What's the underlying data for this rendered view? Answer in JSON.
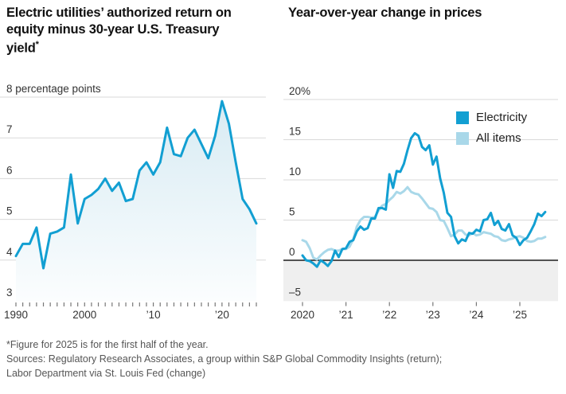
{
  "colors": {
    "accent": "#129fd2",
    "light_series": "#a9d8e9",
    "grid": "#d9d9d9",
    "zero_line": "#1a1a1a",
    "negative_band": "#efefef",
    "tick": "#777777",
    "axis_text": "#333333",
    "area_top": "#d7ebf3",
    "area_bottom": "#fbfdfe"
  },
  "chart_data": [
    {
      "type": "area",
      "title": "Electric utilities’ authorized return on equity minus 30-year U.S. Treasury yield",
      "title_marker": "*",
      "ylabel_unit": "percentage points",
      "ylim": [
        3,
        8
      ],
      "grid": true,
      "legend_position": "none",
      "line_color": "#129fd2",
      "x": [
        1990,
        1991,
        1992,
        1993,
        1994,
        1995,
        1996,
        1997,
        1998,
        1999,
        2000,
        2001,
        2002,
        2003,
        2004,
        2005,
        2006,
        2007,
        2008,
        2009,
        2010,
        2011,
        2012,
        2013,
        2014,
        2015,
        2016,
        2017,
        2018,
        2019,
        2020,
        2021,
        2022,
        2023,
        2024,
        2025
      ],
      "values": [
        4.1,
        4.4,
        4.4,
        4.8,
        3.8,
        4.65,
        4.7,
        4.8,
        6.1,
        4.9,
        5.5,
        5.6,
        5.75,
        6.0,
        5.7,
        5.9,
        5.45,
        5.5,
        6.2,
        6.4,
        6.1,
        6.4,
        7.25,
        6.6,
        6.55,
        7.0,
        7.2,
        6.85,
        6.5,
        7.05,
        7.9,
        7.35,
        6.4,
        5.5,
        5.25,
        4.9
      ],
      "yticks": [
        {
          "v": 8,
          "label": "8 percentage points",
          "gridline": true
        },
        {
          "v": 7,
          "label": "7",
          "gridline": true
        },
        {
          "v": 6,
          "label": "6",
          "gridline": true
        },
        {
          "v": 5,
          "label": "5",
          "gridline": true
        },
        {
          "v": 4,
          "label": "4",
          "gridline": true
        },
        {
          "v": 3,
          "label": "3",
          "gridline": false
        }
      ],
      "x_labels": [
        {
          "year": 1990,
          "label": "1990"
        },
        {
          "year": 2000,
          "label": "2000"
        },
        {
          "year": 2010,
          "label": "’10"
        },
        {
          "year": 2020,
          "label": "’20"
        }
      ]
    },
    {
      "type": "line",
      "title": "Year-over-year change in prices",
      "x_start_year": 2020,
      "x_interval": "monthly",
      "ylim": [
        -5,
        20
      ],
      "grid": true,
      "negative_band": true,
      "legend_position": "top-right",
      "yticks": [
        {
          "v": 20,
          "label": "20%",
          "gridline": true
        },
        {
          "v": 15,
          "label": "15",
          "gridline": true
        },
        {
          "v": 10,
          "label": "10",
          "gridline": true
        },
        {
          "v": 5,
          "label": "5",
          "gridline": true
        },
        {
          "v": 0,
          "label": "0",
          "gridline": false,
          "zero_line": true
        },
        {
          "v": -5,
          "label": "–5",
          "gridline": false
        }
      ],
      "x_labels": [
        {
          "year": 2020,
          "label": "2020"
        },
        {
          "year": 2021,
          "label": "’21"
        },
        {
          "year": 2022,
          "label": "’22"
        },
        {
          "year": 2023,
          "label": "’23"
        },
        {
          "year": 2024,
          "label": "’24"
        },
        {
          "year": 2025,
          "label": "’25"
        }
      ],
      "series": [
        {
          "name": "Electricity",
          "color": "#129fd2",
          "values": [
            0.6,
            0.0,
            -0.1,
            -0.4,
            -0.8,
            0.0,
            -0.3,
            -0.7,
            -0.1,
            1.2,
            0.4,
            1.4,
            1.5,
            2.3,
            2.5,
            3.6,
            4.2,
            3.8,
            4.0,
            5.2,
            5.2,
            6.5,
            6.5,
            6.3,
            10.7,
            9.0,
            11.1,
            11.0,
            12.0,
            13.7,
            15.2,
            15.8,
            15.5,
            14.1,
            13.7,
            14.3,
            11.9,
            12.9,
            10.2,
            8.4,
            5.9,
            5.4,
            3.0,
            2.1,
            2.6,
            2.4,
            3.4,
            3.3,
            3.8,
            3.6,
            5.0,
            5.1,
            5.9,
            4.4,
            4.9,
            3.9,
            3.7,
            4.5,
            3.1,
            2.8,
            1.9,
            2.5,
            2.8,
            3.6,
            4.5,
            5.8,
            5.5,
            6.0
          ]
        },
        {
          "name": "All items",
          "color": "#a9d8e9",
          "values": [
            2.5,
            2.3,
            1.5,
            0.3,
            0.1,
            0.6,
            1.0,
            1.3,
            1.4,
            1.2,
            1.2,
            1.4,
            1.4,
            1.7,
            2.6,
            4.2,
            5.0,
            5.4,
            5.4,
            5.3,
            5.4,
            6.2,
            6.8,
            7.0,
            7.5,
            7.9,
            8.5,
            8.3,
            8.6,
            9.1,
            8.5,
            8.3,
            8.2,
            7.7,
            7.1,
            6.5,
            6.4,
            6.0,
            5.0,
            4.9,
            4.0,
            3.0,
            3.2,
            3.7,
            3.7,
            3.2,
            3.1,
            3.4,
            3.1,
            3.2,
            3.5,
            3.4,
            3.3,
            3.0,
            2.9,
            2.5,
            2.4,
            2.6,
            2.7,
            2.9,
            3.0,
            2.8,
            2.4,
            2.3,
            2.4,
            2.7,
            2.7,
            2.9
          ]
        }
      ]
    }
  ],
  "footer": {
    "note": "*Figure for 2025 is for the first half of the year.",
    "sources_line1": "Sources: Regulatory Research Associates, a group within S&P Global Commodity Insights (return);",
    "sources_line2": "Labor Department via St. Louis Fed (change)"
  }
}
